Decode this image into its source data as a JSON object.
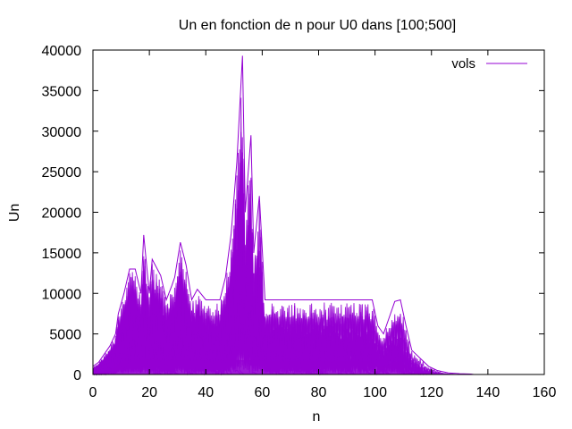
{
  "chart_data": {
    "type": "line",
    "title": "Un en fonction de n pour U0 dans [100;500]",
    "xlabel": "n",
    "ylabel": "Un",
    "xlim": [
      0,
      160
    ],
    "ylim": [
      0,
      40000
    ],
    "xticks": [
      0,
      20,
      40,
      60,
      80,
      100,
      120,
      140,
      160
    ],
    "yticks": [
      0,
      5000,
      10000,
      15000,
      20000,
      25000,
      30000,
      35000,
      40000
    ],
    "grid": false,
    "legend": {
      "position": "top-right",
      "entries": [
        "vols"
      ]
    },
    "series_color": "#9400d3",
    "series": [
      {
        "name": "vols",
        "envelope": [
          [
            0,
            1000
          ],
          [
            2,
            1500
          ],
          [
            4,
            2500
          ],
          [
            6,
            3500
          ],
          [
            8,
            5000
          ],
          [
            9,
            7500
          ],
          [
            11,
            10000
          ],
          [
            13,
            13000
          ],
          [
            15,
            13000
          ],
          [
            17,
            10000
          ],
          [
            18,
            17200
          ],
          [
            20,
            10000
          ],
          [
            21,
            14200
          ],
          [
            24,
            12200
          ],
          [
            26,
            9200
          ],
          [
            28,
            11000
          ],
          [
            29,
            12000
          ],
          [
            31,
            16300
          ],
          [
            33,
            13500
          ],
          [
            35,
            9200
          ],
          [
            37,
            10500
          ],
          [
            40,
            9200
          ],
          [
            45,
            9200
          ],
          [
            47,
            12000
          ],
          [
            49,
            17400
          ],
          [
            51,
            26200
          ],
          [
            53,
            39300
          ],
          [
            54,
            20000
          ],
          [
            56,
            29500
          ],
          [
            57,
            15000
          ],
          [
            59,
            22000
          ],
          [
            61,
            9200
          ],
          [
            97,
            9200
          ],
          [
            99,
            9200
          ],
          [
            101,
            6000
          ],
          [
            103,
            5000
          ],
          [
            105,
            7000
          ],
          [
            107,
            9000
          ],
          [
            109,
            9200
          ],
          [
            111,
            6000
          ],
          [
            113,
            3000
          ],
          [
            116,
            2000
          ],
          [
            119,
            1000
          ],
          [
            122,
            500
          ],
          [
            126,
            200
          ],
          [
            130,
            100
          ],
          [
            134,
            50
          ],
          [
            135,
            0
          ]
        ]
      }
    ]
  }
}
